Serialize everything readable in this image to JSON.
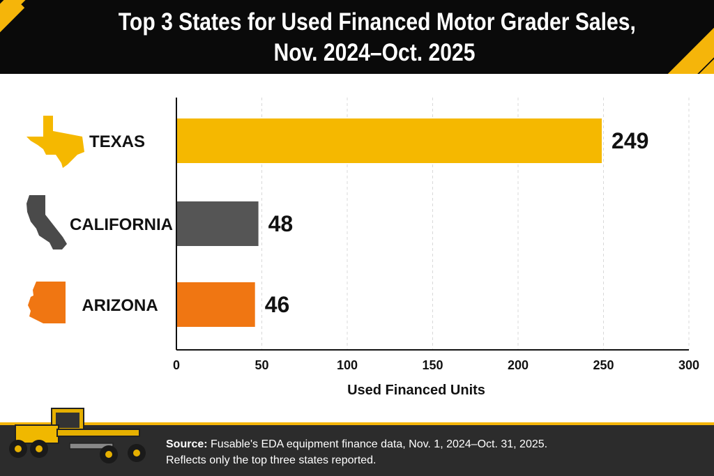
{
  "header": {
    "title_line1": "Top 3 States for Used Financed Motor Grader Sales,",
    "title_line2": "Nov. 2024–Oct. 2025"
  },
  "chart_data": {
    "type": "bar",
    "orientation": "horizontal",
    "categories": [
      "TEXAS",
      "CALIFORNIA",
      "ARIZONA"
    ],
    "values": [
      249,
      48,
      46
    ],
    "data_labels": [
      "249",
      "48",
      "46"
    ],
    "bar_colors": [
      "#f5b800",
      "#555555",
      "#f07612"
    ],
    "xlabel": "Used Financed Units",
    "xlim": [
      0,
      300
    ],
    "xticks": [
      0,
      50,
      100,
      150,
      200,
      250,
      300
    ],
    "grid": "vertical dashed",
    "category_icons": [
      "texas-state-icon",
      "california-state-icon",
      "arizona-state-icon"
    ]
  },
  "footer": {
    "source_label": "Source:",
    "source_text": " Fusable's EDA equipment finance data, Nov. 1, 2024–Oct. 31, 2025.",
    "note": "Reflects only the top three states reported."
  },
  "colors": {
    "header_bg": "#0a0a0a",
    "accent_yellow": "#f5b50a",
    "footer_bg": "#2c2c2c"
  }
}
